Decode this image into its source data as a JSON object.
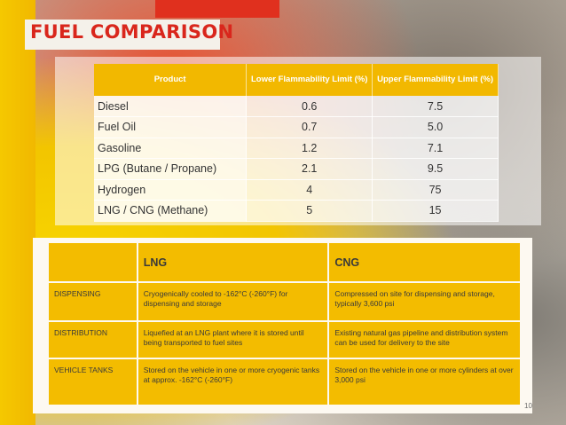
{
  "title": "FUEL COMPARISON",
  "flammability_table": {
    "headers": [
      "Product",
      "Lower Flammability Limit (%)",
      "Upper Flammability Limit (%)"
    ],
    "rows": [
      {
        "product": "Diesel",
        "lower": "0.6",
        "upper": "7.5"
      },
      {
        "product": "Fuel Oil",
        "lower": "0.7",
        "upper": "5.0"
      },
      {
        "product": "Gasoline",
        "lower": "1.2",
        "upper": "7.1"
      },
      {
        "product": "LPG (Butane / Propane)",
        "lower": "2.1",
        "upper": "9.5"
      },
      {
        "product": "Hydrogen",
        "lower": "4",
        "upper": "75"
      },
      {
        "product": "LNG / CNG (Methane)",
        "lower": "5",
        "upper": "15"
      }
    ]
  },
  "comparison_table": {
    "headers": [
      "",
      "LNG",
      "CNG"
    ],
    "rows": [
      {
        "label": "DISPENSING",
        "lng": "Cryogenically cooled to -162°C (-260°F) for dispensing and storage",
        "cng": "Compressed on site for dispensing and storage, typically 3,600 psi"
      },
      {
        "label": "DISTRIBUTION",
        "lng": "Liquefied at an LNG plant where it is stored until being transported to fuel sites",
        "cng": "Existing natural gas pipeline and distribution system can be used for delivery to the site"
      },
      {
        "label": "VEHICLE TANKS",
        "lng": "Stored on the vehicle in one or more cryogenic tanks at approx. -162°C (-260°F)",
        "cng": "Stored on the vehicle in one or more cylinders at over 3,000 psi"
      }
    ]
  },
  "page_number": "10",
  "colors": {
    "accent": "#f3bc00",
    "title": "#d9261c"
  }
}
